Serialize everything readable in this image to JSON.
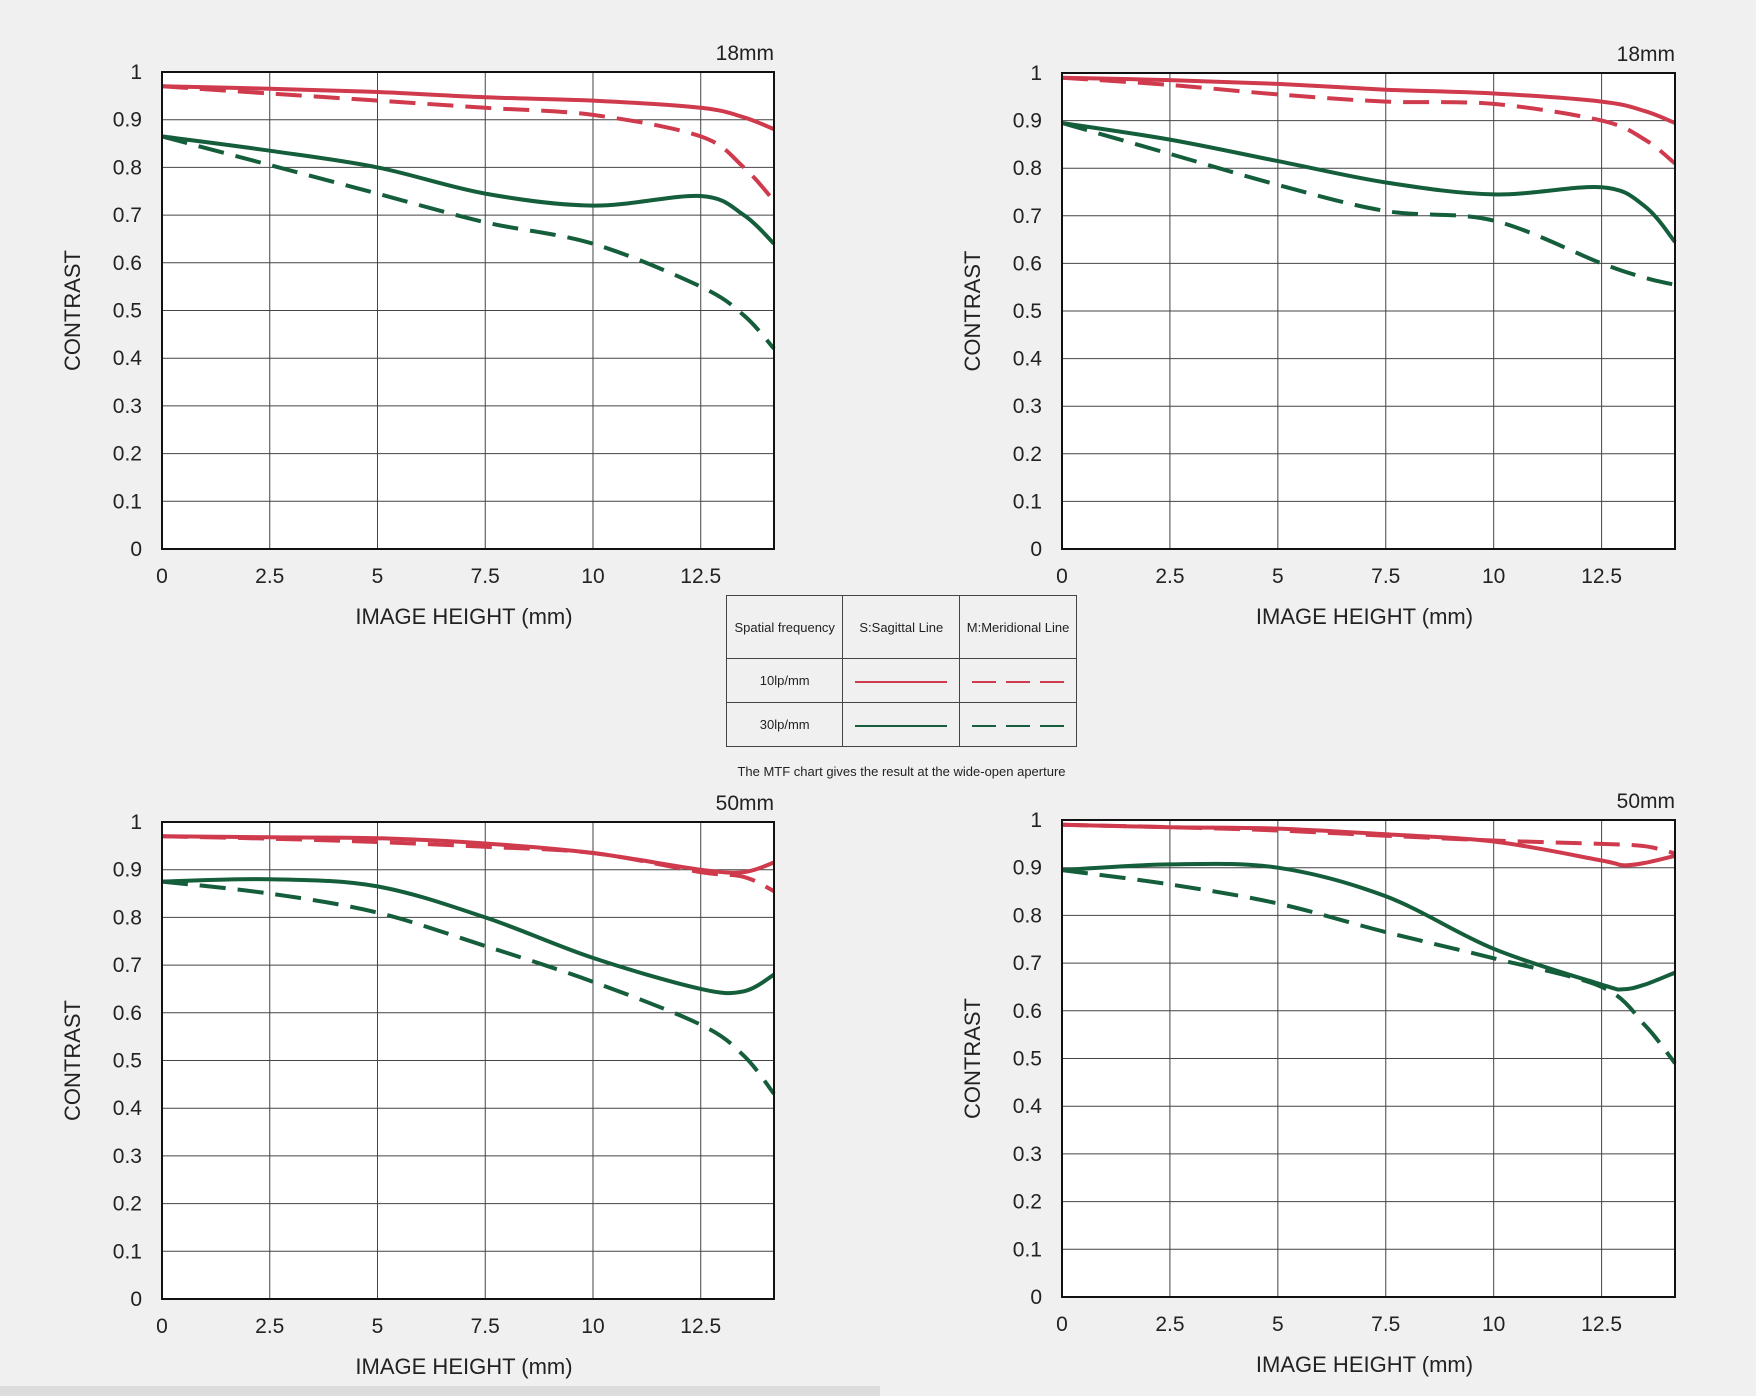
{
  "colors": {
    "red": "#cf3a4c",
    "green": "#155e3c",
    "grid": "#444444",
    "frame": "#111111",
    "text": "#222222"
  },
  "legend": {
    "header": [
      "Spatial frequency",
      "S:Sagittal Line",
      "M:Meridional Line"
    ],
    "rows": [
      {
        "label": "10lp/mm",
        "color": "red"
      },
      {
        "label": "30lp/mm",
        "color": "green"
      }
    ]
  },
  "note": "The MTF chart gives the result at the wide-open aperture",
  "chart_data": [
    {
      "type": "line",
      "title": "18mm",
      "xlabel": "IMAGE HEIGHT (mm)",
      "ylabel": "CONTRAST",
      "xlim": [
        0,
        14.2
      ],
      "ylim": [
        0,
        1
      ],
      "xticks": [
        "0",
        "2.5",
        "5",
        "7.5",
        "10",
        "12.5"
      ],
      "yticks": [
        "0",
        "0.1",
        "0.2",
        "0.3",
        "0.4",
        "0.5",
        "0.6",
        "0.7",
        "0.8",
        "0.9",
        "1"
      ],
      "grid": true,
      "series": [
        {
          "freq": "10lp/mm",
          "line": "sagittal",
          "color": "red",
          "dashed": false,
          "x": [
            0,
            2.5,
            5,
            7.5,
            10,
            12.5,
            13.5,
            14.2
          ],
          "y": [
            0.97,
            0.965,
            0.958,
            0.947,
            0.94,
            0.925,
            0.905,
            0.88
          ]
        },
        {
          "freq": "10lp/mm",
          "line": "meridional",
          "color": "red",
          "dashed": true,
          "x": [
            0,
            2.5,
            5,
            7.5,
            10,
            12.5,
            13.5,
            14.2
          ],
          "y": [
            0.97,
            0.955,
            0.94,
            0.925,
            0.91,
            0.865,
            0.8,
            0.73
          ]
        },
        {
          "freq": "30lp/mm",
          "line": "sagittal",
          "color": "green",
          "dashed": false,
          "x": [
            0,
            2.5,
            5,
            7.5,
            10,
            12.5,
            13.5,
            14.2
          ],
          "y": [
            0.865,
            0.835,
            0.8,
            0.745,
            0.72,
            0.74,
            0.7,
            0.64
          ]
        },
        {
          "freq": "30lp/mm",
          "line": "meridional",
          "color": "green",
          "dashed": true,
          "x": [
            0,
            2.5,
            5,
            7.5,
            10,
            12.5,
            13.5,
            14.2
          ],
          "y": [
            0.865,
            0.805,
            0.745,
            0.685,
            0.64,
            0.55,
            0.49,
            0.42
          ]
        }
      ]
    },
    {
      "type": "line",
      "title": "18mm",
      "xlabel": "IMAGE HEIGHT (mm)",
      "ylabel": "CONTRAST",
      "xlim": [
        0,
        14.2
      ],
      "ylim": [
        0,
        1
      ],
      "xticks": [
        "0",
        "2.5",
        "5",
        "7.5",
        "10",
        "12.5"
      ],
      "yticks": [
        "0",
        "0.1",
        "0.2",
        "0.3",
        "0.4",
        "0.5",
        "0.6",
        "0.7",
        "0.8",
        "0.9",
        "1"
      ],
      "grid": true,
      "series": [
        {
          "freq": "10lp/mm",
          "line": "sagittal",
          "color": "red",
          "dashed": false,
          "x": [
            0,
            2.5,
            5,
            7.5,
            10,
            12.5,
            13.5,
            14.2
          ],
          "y": [
            0.99,
            0.985,
            0.977,
            0.965,
            0.957,
            0.94,
            0.92,
            0.895
          ]
        },
        {
          "freq": "10lp/mm",
          "line": "meridional",
          "color": "red",
          "dashed": true,
          "x": [
            0,
            2.5,
            5,
            7.5,
            10,
            12.5,
            13.5,
            14.2
          ],
          "y": [
            0.99,
            0.975,
            0.955,
            0.94,
            0.935,
            0.9,
            0.86,
            0.81
          ]
        },
        {
          "freq": "30lp/mm",
          "line": "sagittal",
          "color": "green",
          "dashed": false,
          "x": [
            0,
            2.5,
            5,
            7.5,
            10,
            12.5,
            13.5,
            14.2
          ],
          "y": [
            0.895,
            0.86,
            0.815,
            0.77,
            0.745,
            0.76,
            0.72,
            0.645
          ]
        },
        {
          "freq": "30lp/mm",
          "line": "meridional",
          "color": "green",
          "dashed": true,
          "x": [
            0,
            2.5,
            5,
            7.5,
            10,
            12.5,
            13.5,
            14.2
          ],
          "y": [
            0.895,
            0.83,
            0.765,
            0.71,
            0.69,
            0.6,
            0.57,
            0.555
          ]
        }
      ]
    },
    {
      "type": "line",
      "title": "50mm",
      "xlabel": "IMAGE HEIGHT (mm)",
      "ylabel": "CONTRAST",
      "xlim": [
        0,
        14.2
      ],
      "ylim": [
        0,
        1
      ],
      "xticks": [
        "0",
        "2.5",
        "5",
        "7.5",
        "10",
        "12.5"
      ],
      "yticks": [
        "0",
        "0.1",
        "0.2",
        "0.3",
        "0.4",
        "0.5",
        "0.6",
        "0.7",
        "0.8",
        "0.9",
        "1"
      ],
      "grid": true,
      "series": [
        {
          "freq": "10lp/mm",
          "line": "sagittal",
          "color": "red",
          "dashed": false,
          "x": [
            0,
            2.5,
            5,
            7.5,
            10,
            12.5,
            13.5,
            14.2
          ],
          "y": [
            0.97,
            0.968,
            0.966,
            0.955,
            0.935,
            0.9,
            0.895,
            0.915
          ]
        },
        {
          "freq": "10lp/mm",
          "line": "meridional",
          "color": "red",
          "dashed": true,
          "x": [
            0,
            2.5,
            5,
            7.5,
            10,
            12.5,
            13.5,
            14.2
          ],
          "y": [
            0.97,
            0.965,
            0.958,
            0.948,
            0.935,
            0.895,
            0.885,
            0.855
          ]
        },
        {
          "freq": "30lp/mm",
          "line": "sagittal",
          "color": "green",
          "dashed": false,
          "x": [
            0,
            2.5,
            5,
            7.5,
            10,
            12.5,
            13.5,
            14.2
          ],
          "y": [
            0.875,
            0.88,
            0.865,
            0.8,
            0.715,
            0.65,
            0.645,
            0.68
          ]
        },
        {
          "freq": "30lp/mm",
          "line": "meridional",
          "color": "green",
          "dashed": true,
          "x": [
            0,
            2.5,
            5,
            7.5,
            10,
            12.5,
            13.5,
            14.2
          ],
          "y": [
            0.875,
            0.85,
            0.81,
            0.74,
            0.665,
            0.575,
            0.51,
            0.43
          ]
        }
      ]
    },
    {
      "type": "line",
      "title": "50mm",
      "xlabel": "IMAGE HEIGHT (mm)",
      "ylabel": "CONTRAST",
      "xlim": [
        0,
        14.2
      ],
      "ylim": [
        0,
        1
      ],
      "xticks": [
        "0",
        "2.5",
        "5",
        "7.5",
        "10",
        "12.5"
      ],
      "yticks": [
        "0",
        "0.1",
        "0.2",
        "0.3",
        "0.4",
        "0.5",
        "0.6",
        "0.7",
        "0.8",
        "0.9",
        "1"
      ],
      "grid": true,
      "series": [
        {
          "freq": "10lp/mm",
          "line": "sagittal",
          "color": "red",
          "dashed": false,
          "x": [
            0,
            2.5,
            5,
            7.5,
            10,
            12.5,
            13,
            13.5,
            14.2
          ],
          "y": [
            0.99,
            0.985,
            0.982,
            0.97,
            0.955,
            0.915,
            0.905,
            0.91,
            0.925
          ]
        },
        {
          "freq": "10lp/mm",
          "line": "meridional",
          "color": "red",
          "dashed": true,
          "x": [
            0,
            2.5,
            5,
            7.5,
            10,
            12.5,
            13.5,
            14.2
          ],
          "y": [
            0.99,
            0.985,
            0.978,
            0.967,
            0.957,
            0.95,
            0.945,
            0.93
          ]
        },
        {
          "freq": "30lp/mm",
          "line": "sagittal",
          "color": "green",
          "dashed": false,
          "x": [
            0,
            2.5,
            5,
            7.5,
            10,
            12.5,
            13,
            13.5,
            14.2
          ],
          "y": [
            0.895,
            0.907,
            0.9,
            0.84,
            0.73,
            0.655,
            0.645,
            0.655,
            0.68
          ]
        },
        {
          "freq": "30lp/mm",
          "line": "meridional",
          "color": "green",
          "dashed": true,
          "x": [
            0,
            2.5,
            5,
            7.5,
            10,
            12.5,
            13.5,
            14.2
          ],
          "y": [
            0.895,
            0.865,
            0.825,
            0.765,
            0.71,
            0.65,
            0.57,
            0.49
          ]
        }
      ]
    }
  ]
}
